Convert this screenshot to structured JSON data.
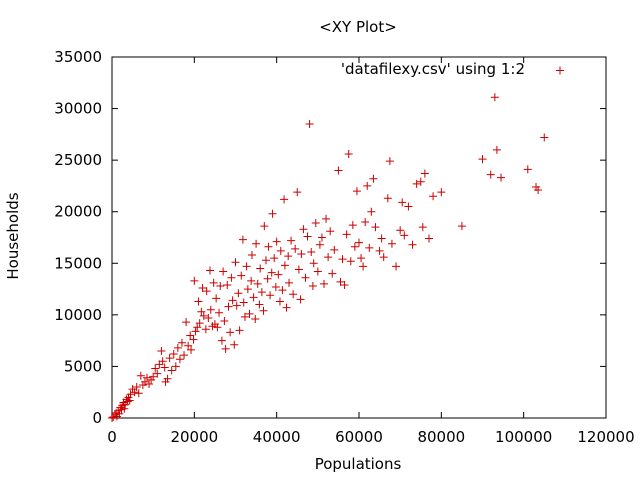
{
  "chart_data": {
    "type": "scatter",
    "title": "<XY Plot>",
    "xlabel": "Populations",
    "ylabel": "Households",
    "xlim": [
      0,
      120000
    ],
    "ylim": [
      0,
      35000
    ],
    "xticks": [
      0,
      20000,
      40000,
      60000,
      80000,
      100000,
      120000
    ],
    "yticks": [
      0,
      5000,
      10000,
      15000,
      20000,
      25000,
      30000,
      35000
    ],
    "grid": false,
    "legend_position": "top-right",
    "marker": "plus",
    "series": [
      {
        "name": "'datafilexy.csv' using 1:2",
        "color": "#cc0000",
        "points": [
          [
            0,
            0
          ],
          [
            300,
            100
          ],
          [
            700,
            300
          ],
          [
            1000,
            500
          ],
          [
            1200,
            150
          ],
          [
            1500,
            700
          ],
          [
            1800,
            400
          ],
          [
            2000,
            1000
          ],
          [
            2300,
            800
          ],
          [
            2500,
            1200
          ],
          [
            2800,
            1500
          ],
          [
            3000,
            900
          ],
          [
            3200,
            1300
          ],
          [
            3500,
            1800
          ],
          [
            3800,
            1600
          ],
          [
            4000,
            2000
          ],
          [
            4300,
            1700
          ],
          [
            4500,
            2300
          ],
          [
            5000,
            2800
          ],
          [
            5500,
            2500
          ],
          [
            6000,
            3000
          ],
          [
            6500,
            2400
          ],
          [
            7000,
            4100
          ],
          [
            7500,
            3200
          ],
          [
            8000,
            3500
          ],
          [
            8500,
            3900
          ],
          [
            9000,
            3300
          ],
          [
            9500,
            3700
          ],
          [
            10000,
            4000
          ],
          [
            10500,
            4800
          ],
          [
            11000,
            4300
          ],
          [
            11500,
            5200
          ],
          [
            12000,
            6500
          ],
          [
            12300,
            5500
          ],
          [
            12800,
            4900
          ],
          [
            13000,
            3500
          ],
          [
            13500,
            3800
          ],
          [
            14000,
            5800
          ],
          [
            14500,
            4600
          ],
          [
            15000,
            6200
          ],
          [
            15500,
            5000
          ],
          [
            16000,
            6800
          ],
          [
            16500,
            5700
          ],
          [
            17000,
            7300
          ],
          [
            17500,
            6100
          ],
          [
            18000,
            9300
          ],
          [
            18500,
            7000
          ],
          [
            19000,
            8000
          ],
          [
            19200,
            6600
          ],
          [
            19800,
            7600
          ],
          [
            20000,
            13300
          ],
          [
            20300,
            8400
          ],
          [
            20700,
            8800
          ],
          [
            21000,
            11300
          ],
          [
            21300,
            9200
          ],
          [
            21700,
            10300
          ],
          [
            22000,
            12600
          ],
          [
            22300,
            9900
          ],
          [
            22800,
            8600
          ],
          [
            23000,
            12300
          ],
          [
            23400,
            9700
          ],
          [
            23800,
            14300
          ],
          [
            24000,
            10500
          ],
          [
            24400,
            8900
          ],
          [
            24700,
            13100
          ],
          [
            25000,
            9100
          ],
          [
            25300,
            11600
          ],
          [
            25600,
            8800
          ],
          [
            26000,
            10200
          ],
          [
            26300,
            12800
          ],
          [
            26700,
            7500
          ],
          [
            27000,
            14200
          ],
          [
            27300,
            9400
          ],
          [
            27600,
            6700
          ],
          [
            28000,
            12900
          ],
          [
            28300,
            10800
          ],
          [
            28700,
            8300
          ],
          [
            29000,
            13600
          ],
          [
            29300,
            11400
          ],
          [
            29700,
            7100
          ],
          [
            30000,
            15100
          ],
          [
            30300,
            10900
          ],
          [
            30700,
            12100
          ],
          [
            31000,
            8500
          ],
          [
            31400,
            13800
          ],
          [
            31800,
            17300
          ],
          [
            32000,
            11200
          ],
          [
            32300,
            9800
          ],
          [
            32700,
            14700
          ],
          [
            33000,
            12500
          ],
          [
            33400,
            10100
          ],
          [
            33800,
            13300
          ],
          [
            34000,
            15800
          ],
          [
            34400,
            11700
          ],
          [
            34800,
            9600
          ],
          [
            35000,
            16900
          ],
          [
            35400,
            13000
          ],
          [
            35800,
            11000
          ],
          [
            36000,
            14500
          ],
          [
            36400,
            12200
          ],
          [
            36800,
            10400
          ],
          [
            37000,
            18600
          ],
          [
            37400,
            15300
          ],
          [
            37800,
            13500
          ],
          [
            38000,
            16600
          ],
          [
            38400,
            11900
          ],
          [
            38800,
            14100
          ],
          [
            39000,
            19800
          ],
          [
            39400,
            15500
          ],
          [
            39800,
            12700
          ],
          [
            40000,
            17100
          ],
          [
            40400,
            13900
          ],
          [
            40800,
            11300
          ],
          [
            41000,
            16200
          ],
          [
            41400,
            12400
          ],
          [
            41800,
            21200
          ],
          [
            42000,
            14800
          ],
          [
            42400,
            10700
          ],
          [
            42800,
            15700
          ],
          [
            43000,
            13100
          ],
          [
            43500,
            17200
          ],
          [
            44000,
            12000
          ],
          [
            44500,
            16400
          ],
          [
            45000,
            21900
          ],
          [
            45400,
            14400
          ],
          [
            45800,
            11500
          ],
          [
            46000,
            15900
          ],
          [
            46500,
            18300
          ],
          [
            47000,
            13600
          ],
          [
            47500,
            17600
          ],
          [
            48000,
            28500
          ],
          [
            48400,
            16100
          ],
          [
            48800,
            12800
          ],
          [
            49000,
            15000
          ],
          [
            49500,
            18900
          ],
          [
            50000,
            14200
          ],
          [
            50500,
            16800
          ],
          [
            51000,
            17500
          ],
          [
            51500,
            13000
          ],
          [
            52000,
            19300
          ],
          [
            52500,
            15600
          ],
          [
            53000,
            18100
          ],
          [
            53500,
            14000
          ],
          [
            54000,
            16300
          ],
          [
            55000,
            24000
          ],
          [
            55500,
            13200
          ],
          [
            56000,
            15400
          ],
          [
            56500,
            12900
          ],
          [
            57000,
            17800
          ],
          [
            57500,
            25600
          ],
          [
            58000,
            15200
          ],
          [
            58500,
            18700
          ],
          [
            59000,
            16600
          ],
          [
            59500,
            22000
          ],
          [
            60000,
            17000
          ],
          [
            60500,
            15500
          ],
          [
            61000,
            14700
          ],
          [
            61500,
            19000
          ],
          [
            62000,
            22500
          ],
          [
            62500,
            16500
          ],
          [
            63000,
            20000
          ],
          [
            63500,
            23200
          ],
          [
            64000,
            18500
          ],
          [
            65000,
            16200
          ],
          [
            65500,
            17400
          ],
          [
            66000,
            15600
          ],
          [
            67000,
            21300
          ],
          [
            67500,
            24900
          ],
          [
            68000,
            16900
          ],
          [
            69000,
            14700
          ],
          [
            70000,
            18200
          ],
          [
            70500,
            20900
          ],
          [
            71000,
            17700
          ],
          [
            72000,
            20500
          ],
          [
            73000,
            16800
          ],
          [
            74000,
            22700
          ],
          [
            75000,
            22900
          ],
          [
            75500,
            18500
          ],
          [
            76000,
            23700
          ],
          [
            77000,
            17400
          ],
          [
            78000,
            21500
          ],
          [
            80000,
            21900
          ],
          [
            85000,
            18600
          ],
          [
            90000,
            25100
          ],
          [
            92000,
            23600
          ],
          [
            93000,
            31100
          ],
          [
            93500,
            26000
          ],
          [
            94500,
            23300
          ],
          [
            101000,
            24100
          ],
          [
            103000,
            22400
          ],
          [
            103500,
            22100
          ],
          [
            105000,
            27200
          ]
        ]
      }
    ]
  }
}
